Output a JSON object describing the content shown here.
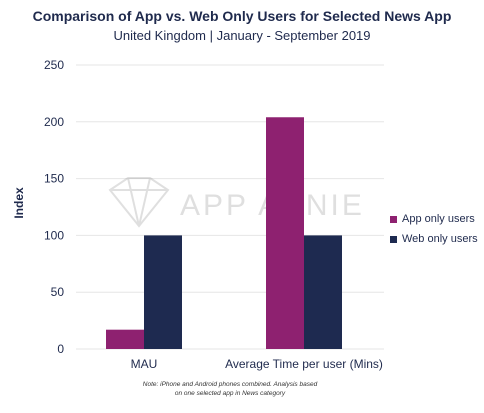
{
  "title": "Comparison of App vs. Web Only Users for Selected News App",
  "subtitle": "United Kingdom  |  January - September 2019",
  "watermark": "APP ANNIE",
  "note_line1": "Note: iPhone and Android phones combined. Analysis based",
  "note_line2": "on one selected app in News category",
  "colors": {
    "app": "#8e2170",
    "web": "#1e2a50",
    "grid": "#e6e6e6",
    "text": "#1f2a4d"
  },
  "chart_data": {
    "type": "bar",
    "title": "Comparison of App vs. Web Only Users for Selected News App",
    "subtitle": "United Kingdom  |  January - September 2019",
    "xlabel": "",
    "ylabel": "Index",
    "ylim": [
      0,
      250
    ],
    "yticks": [
      0,
      50,
      100,
      150,
      200,
      250
    ],
    "categories": [
      "MAU",
      "Average Time per user (Mins)"
    ],
    "series": [
      {
        "name": "App only users",
        "values": [
          17,
          204
        ]
      },
      {
        "name": "Web only users",
        "values": [
          100,
          100
        ]
      }
    ],
    "grid": true,
    "legend": "right"
  }
}
